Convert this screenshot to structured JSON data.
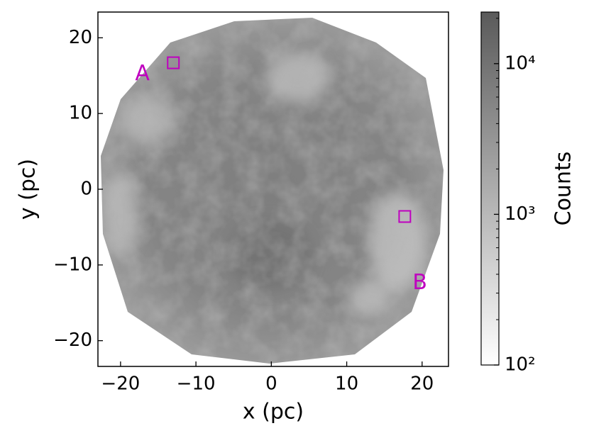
{
  "chart_data": {
    "type": "image",
    "xlabel": "x (pc)",
    "ylabel": "y (pc)",
    "xlim": [
      -23.0,
      23.5
    ],
    "ylim": [
      -23.4,
      23.4
    ],
    "xticks": [
      {
        "value": -20,
        "label": "−20"
      },
      {
        "value": -10,
        "label": "−10"
      },
      0,
      10,
      20
    ],
    "yticks": [
      {
        "value": -20,
        "label": "−20"
      },
      {
        "value": -10,
        "label": "−10"
      },
      0,
      10,
      20
    ],
    "colorbar": {
      "label": "Counts",
      "scale": "log",
      "lim": [
        100,
        22000
      ],
      "ticks": [
        {
          "value": 100,
          "label": "10²"
        },
        {
          "value": 1000,
          "label": "10³"
        },
        {
          "value": 10000,
          "label": "10⁴"
        }
      ],
      "minor_ticks": [
        200,
        300,
        400,
        500,
        600,
        700,
        800,
        900,
        2000,
        3000,
        4000,
        5000,
        6000,
        7000,
        8000,
        9000,
        20000
      ],
      "colors": [
        "#ffffff",
        "#5a5a5a"
      ]
    },
    "markers": [
      {
        "x": -13.0,
        "y": 16.7,
        "size": 1.5
      },
      {
        "x": 17.7,
        "y": -3.6,
        "size": 1.5
      }
    ],
    "annotations": [
      {
        "text": "A",
        "x": -17.1,
        "y": 15.2
      },
      {
        "text": "B",
        "x": 19.7,
        "y": -12.4
      }
    ],
    "annotation_color": "#bf00bf"
  }
}
